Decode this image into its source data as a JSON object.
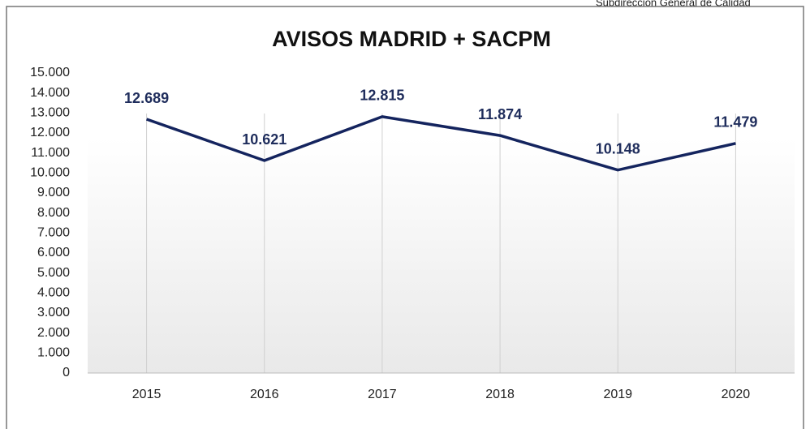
{
  "header": "Subdirección General de Calidad",
  "chart_data": {
    "type": "line",
    "title": "AVISOS MADRID + SACPM",
    "categories": [
      "2015",
      "2016",
      "2017",
      "2018",
      "2019",
      "2020"
    ],
    "series": [
      {
        "name": "AVISOS MADRID + SACPM",
        "color": "#14245e",
        "values": [
          12689,
          10621,
          12815,
          11874,
          10148,
          11479
        ],
        "value_labels": [
          "12.689",
          "10.621",
          "12.815",
          "11.874",
          "10.148",
          "11.479"
        ]
      }
    ],
    "ylim": [
      0,
      15000
    ],
    "yticks": [
      0,
      {
        "value": 1000,
        "label": "1.000"
      },
      {
        "value": 2000,
        "label": "2.000"
      },
      {
        "value": 3000,
        "label": "3.000"
      },
      {
        "value": 4000,
        "label": "4.000"
      },
      {
        "value": 5000,
        "label": "5.000"
      },
      {
        "value": 6000,
        "label": "6.000"
      },
      {
        "value": 7000,
        "label": "7.000"
      },
      {
        "value": 8000,
        "label": "8.000"
      },
      {
        "value": 9000,
        "label": "9.000"
      },
      {
        "value": 10000,
        "label": "10.000"
      },
      {
        "value": 11000,
        "label": "11.000"
      },
      {
        "value": 12000,
        "label": "12.000"
      },
      {
        "value": 13000,
        "label": "13.000"
      },
      {
        "value": 14000,
        "label": "14.000"
      },
      {
        "value": 15000,
        "label": "15.000"
      }
    ],
    "grid": "x"
  }
}
